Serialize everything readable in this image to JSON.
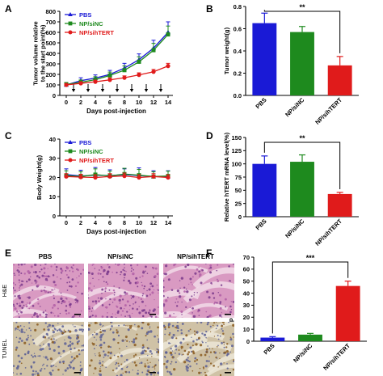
{
  "panels": {
    "A": "A",
    "B": "B",
    "C": "C",
    "D": "D",
    "E": "E",
    "F": "F"
  },
  "colors": {
    "pbs": "#1a1ad6",
    "nc": "#1e8a1e",
    "sh": "#e01b1b",
    "axis": "#000000",
    "he_tissue": "#d99ac2",
    "tunel_tissue": "#cfc2a6"
  },
  "chart_data": [
    {
      "panel": "A",
      "type": "line",
      "title": "",
      "xlabel": "Days post-injection",
      "ylabel": "Tumor volume relative to the start point(%)",
      "x": [
        0,
        2,
        4,
        6,
        8,
        10,
        12,
        14
      ],
      "xticks": [
        "0",
        "2",
        "4",
        "6",
        "8",
        "10",
        "12",
        "14"
      ],
      "ylim": [
        0,
        800
      ],
      "yticks": [
        "0",
        "100",
        "200",
        "300",
        "400",
        "500",
        "600",
        "700",
        "800"
      ],
      "legend_position": "top-left",
      "injection_days": [
        1,
        3,
        5,
        7,
        9,
        11,
        13
      ],
      "series": [
        {
          "name": "PBS",
          "color_key": "pbs",
          "marker": "triangle-up",
          "values": [
            100,
            140,
            165,
            200,
            260,
            340,
            450,
            600
          ],
          "errors": [
            20,
            28,
            30,
            38,
            45,
            55,
            75,
            100
          ]
        },
        {
          "name": "NP/siNC",
          "color_key": "nc",
          "marker": "square",
          "values": [
            105,
            125,
            150,
            190,
            240,
            320,
            430,
            580
          ],
          "errors": [
            18,
            22,
            28,
            32,
            40,
            48,
            65,
            80
          ]
        },
        {
          "name": "NP/sihTERT",
          "color_key": "sh",
          "marker": "circle",
          "values": [
            100,
            115,
            130,
            148,
            168,
            195,
            225,
            280
          ],
          "errors": [
            12,
            15,
            15,
            18,
            18,
            20,
            22,
            25
          ]
        }
      ]
    },
    {
      "panel": "B",
      "type": "bar",
      "title": "",
      "xlabel": "",
      "ylabel": "Tumor weight(g)",
      "categories": [
        "PBS",
        "NP/siNC",
        "NP/sihTERT"
      ],
      "values": [
        0.65,
        0.57,
        0.27
      ],
      "errors": [
        0.09,
        0.05,
        0.08
      ],
      "color_keys": [
        "pbs",
        "nc",
        "sh"
      ],
      "ylim": [
        0,
        0.8
      ],
      "yticks": [
        "0.0",
        "0.2",
        "0.4",
        "0.6",
        "0.8"
      ],
      "significance": {
        "from": 0,
        "to": 2,
        "label": "**"
      }
    },
    {
      "panel": "C",
      "type": "line",
      "title": "",
      "xlabel": "Days post-injection",
      "ylabel": "Body Weight(g)",
      "x": [
        0,
        2,
        4,
        6,
        8,
        10,
        12,
        14
      ],
      "xticks": [
        "0",
        "2",
        "4",
        "6",
        "8",
        "10",
        "12",
        "14"
      ],
      "ylim": [
        0,
        40
      ],
      "yticks": [
        "0",
        "10",
        "20",
        "30",
        "40"
      ],
      "legend_position": "top-left",
      "series": [
        {
          "name": "PBS",
          "color_key": "pbs",
          "marker": "triangle-up",
          "values": [
            21.5,
            20.8,
            21.2,
            21.0,
            21.5,
            21.0,
            20.5,
            20.5
          ],
          "errors": [
            3,
            3,
            4,
            3,
            3,
            4,
            3,
            3
          ]
        },
        {
          "name": "NP/siNC",
          "color_key": "nc",
          "marker": "square",
          "values": [
            21.0,
            20.5,
            21.5,
            20.8,
            21.8,
            21.2,
            20.5,
            20.8
          ],
          "errors": [
            2.5,
            2.5,
            3,
            2.5,
            3,
            3,
            2.5,
            2.5
          ]
        },
        {
          "name": "NP/sihTERT",
          "color_key": "sh",
          "marker": "circle",
          "values": [
            20.5,
            20.2,
            20.0,
            20.5,
            20.8,
            20.0,
            20.5,
            20.0
          ],
          "errors": [
            1.5,
            1.5,
            1.5,
            1.5,
            1.5,
            1.5,
            1.5,
            1.5
          ]
        }
      ]
    },
    {
      "panel": "D",
      "type": "bar",
      "title": "",
      "xlabel": "",
      "ylabel": "Relative hTERT mRNA level(%)",
      "categories": [
        "PBS",
        "NP/siNC",
        "NP/sihTERT"
      ],
      "values": [
        100,
        104,
        43
      ],
      "errors": [
        15,
        13,
        3
      ],
      "color_keys": [
        "pbs",
        "nc",
        "sh"
      ],
      "ylim": [
        0,
        150
      ],
      "yticks": [
        "0",
        "25",
        "50",
        "75",
        "100",
        "125",
        "150"
      ],
      "significance": {
        "from": 0,
        "to": 2,
        "label": "**"
      }
    },
    {
      "panel": "F",
      "type": "bar",
      "title": "",
      "xlabel": "",
      "ylabel": "Apoptosis cells(%)",
      "categories": [
        "PBS",
        "NP/siNC",
        "NP/sihTERT"
      ],
      "values": [
        3,
        5.5,
        46
      ],
      "errors": [
        0.8,
        1,
        4
      ],
      "color_keys": [
        "pbs",
        "nc",
        "sh"
      ],
      "ylim": [
        0,
        70
      ],
      "yticks": [
        "0",
        "10",
        "20",
        "30",
        "40",
        "50",
        "60",
        "70"
      ],
      "significance": {
        "from": 0,
        "to": 2,
        "label": "***"
      }
    }
  ],
  "micrographs": {
    "columns": [
      "PBS",
      "NP/siNC",
      "NP/sihTERT"
    ],
    "rows": [
      "H&E",
      "TUNEL"
    ]
  }
}
